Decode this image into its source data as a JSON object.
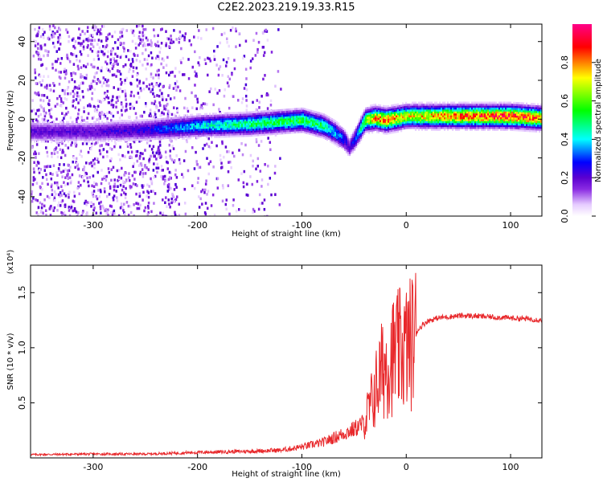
{
  "title": "C2E2.2023.219.19.33.R15",
  "chart_data": [
    {
      "type": "heatmap",
      "xlabel": "Height of straight line (km)",
      "ylabel": "Frequency (Hz)",
      "xlim": [
        -360,
        130
      ],
      "ylim": [
        -50,
        49
      ],
      "x_ticks": [
        -300,
        -200,
        -100,
        0,
        100
      ],
      "y_ticks": [
        -40,
        -20,
        0,
        20,
        40
      ],
      "colorbar": {
        "label": "Normalized spectral amplitude",
        "range": [
          0,
          1
        ],
        "ticks": [
          0.0,
          0.2,
          0.4,
          0.6,
          0.8
        ],
        "colormap": [
          "#ffffff",
          "#e6ccff",
          "#8a2be2",
          "#5a00d0",
          "#0000ff",
          "#00ffff",
          "#00ff00",
          "#ffff00",
          "#ff0000",
          "#ff00aa"
        ]
      },
      "ridge": {
        "x": [
          -360,
          -300,
          -250,
          -200,
          -150,
          -100,
          -80,
          -70,
          -60,
          -55,
          -50,
          -40,
          -30,
          -20,
          -10,
          0,
          50,
          100,
          130
        ],
        "y": [
          -6,
          -6,
          -5,
          -3,
          -2,
          0,
          -3,
          -6,
          -10,
          -14,
          -10,
          0,
          1,
          0,
          1,
          2,
          2,
          2,
          1
        ],
        "amplitude": [
          0.2,
          0.2,
          0.25,
          0.4,
          0.5,
          0.55,
          0.5,
          0.4,
          0.3,
          0.2,
          0.3,
          0.6,
          0.8,
          0.85,
          0.8,
          0.7,
          0.85,
          0.9,
          0.85
        ]
      },
      "grid": false
    },
    {
      "type": "line",
      "xlabel": "Height of straight line (km)",
      "ylabel": "SNR (10 * v/v)",
      "y_multiplier": "(x10⁴)",
      "xlim": [
        -360,
        130
      ],
      "ylim": [
        0,
        17500
      ],
      "x_ticks": [
        -300,
        -200,
        -100,
        0,
        100
      ],
      "y_ticks": [
        5000,
        10000,
        15000
      ],
      "y_tick_labels": [
        "0.5",
        "1.0",
        "1.5"
      ],
      "series": [
        {
          "color": "#e8282b",
          "x": [
            -360,
            -300,
            -250,
            -200,
            -150,
            -120,
            -100,
            -80,
            -60,
            -50,
            -40,
            -35,
            -30,
            -25,
            -20,
            -15,
            -10,
            -5,
            0,
            5,
            10,
            15,
            20,
            30,
            40,
            50,
            60,
            70,
            80,
            90,
            100,
            110,
            120,
            130
          ],
          "y": [
            300,
            350,
            350,
            500,
            600,
            700,
            1000,
            1400,
            2200,
            2600,
            3200,
            4500,
            6000,
            7500,
            8500,
            9000,
            9500,
            9800,
            10000,
            10500,
            11500,
            12000,
            12400,
            12700,
            12800,
            12900,
            12900,
            12850,
            12800,
            12750,
            12700,
            12650,
            12600,
            12500
          ]
        }
      ],
      "grid": false
    }
  ]
}
